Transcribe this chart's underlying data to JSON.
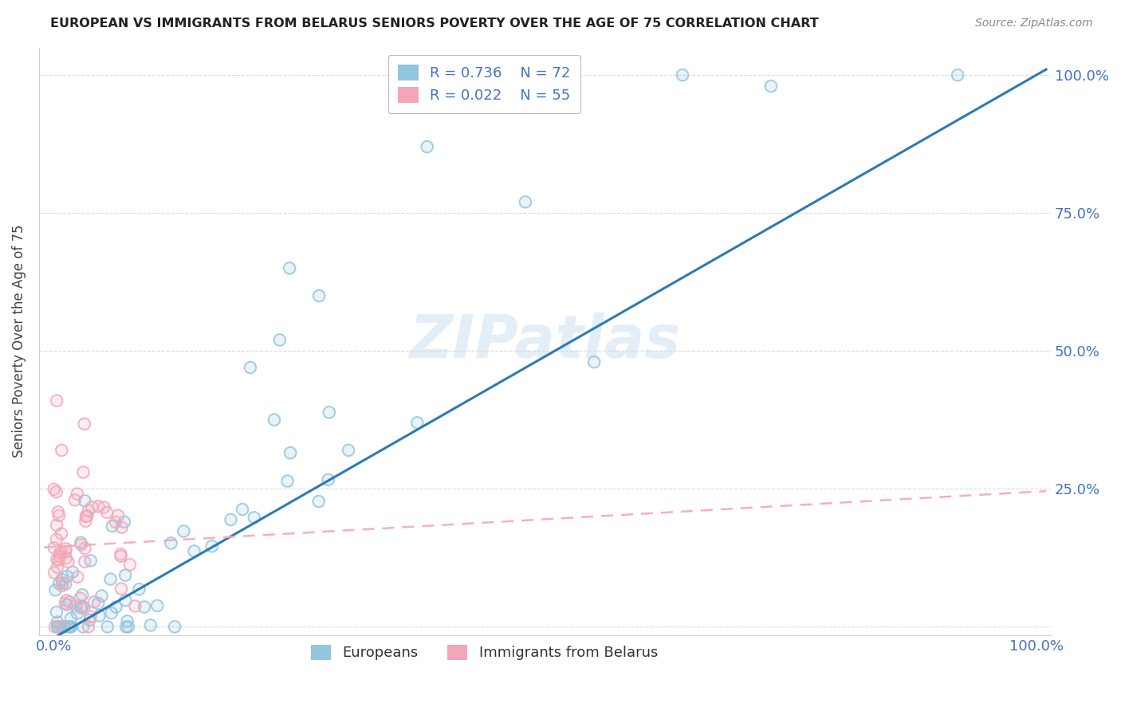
{
  "title": "EUROPEAN VS IMMIGRANTS FROM BELARUS SENIORS POVERTY OVER THE AGE OF 75 CORRELATION CHART",
  "source": "Source: ZipAtlas.com",
  "ylabel": "Seniors Poverty Over the Age of 75",
  "blue_R": 0.736,
  "blue_N": 72,
  "pink_R": 0.022,
  "pink_N": 55,
  "blue_color": "#92c5de",
  "pink_color": "#f4a6b8",
  "blue_line_color": "#2c7bb6",
  "pink_line_color": "#d7191c",
  "pink_line_color2": "#f4a6b8",
  "watermark": "ZIPatlas",
  "legend_label_blue": "Europeans",
  "legend_label_pink": "Immigrants from Belarus",
  "background_color": "#ffffff",
  "grid_color": "#d0d0d0",
  "axis_color": "#4472c4",
  "title_color": "#222222",
  "source_color": "#888888"
}
